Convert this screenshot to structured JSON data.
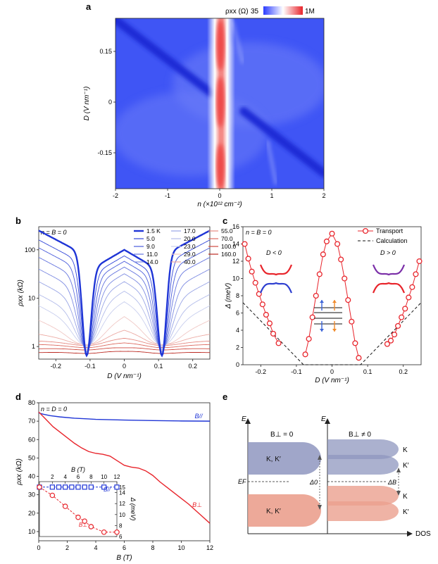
{
  "panel_labels": {
    "a": "a",
    "b": "b",
    "c": "c",
    "d": "d",
    "e": "e"
  },
  "panel_a": {
    "colorbar_label": "ρxx (Ω)",
    "colorbar_min": "35",
    "colorbar_max": "1M",
    "xlabel": "n (×10¹² cm⁻²)",
    "ylabel": "D (V nm⁻¹)",
    "x_ticks": [
      "-2",
      "-1",
      "0",
      "1",
      "2"
    ],
    "y_ticks": [
      "0.15",
      "0",
      "-0.15"
    ],
    "colors": {
      "low": "#2b3cff",
      "mid": "#ffffff",
      "high": "#e8242b"
    }
  },
  "chart_data": [
    {
      "panel": "b",
      "type": "line",
      "annotation": "n = B = 0",
      "xlabel": "D (V nm⁻¹)",
      "ylabel": "ρxx (kΩ)",
      "xlim": [
        -0.25,
        0.25
      ],
      "ylim_log": [
        0.55,
        300
      ],
      "y_scale": "log",
      "x_ticks": [
        "-0.2",
        "-0.1",
        "0",
        "0.1",
        "0.2"
      ],
      "y_ticks": [
        "1",
        "10",
        "100"
      ],
      "legend_placement": "top-right",
      "legend": [
        "1.5 K",
        "5.0",
        "9.0",
        "11.0",
        "14.0",
        "17.0",
        "20.0",
        "23.0",
        "29.0",
        "40.0",
        "55.0",
        "70.0",
        "100.0",
        "160.0"
      ],
      "series_colors": [
        "#1f35d6",
        "#3347d8",
        "#4a5cdb",
        "#6474de",
        "#7e8ce2",
        "#99a5e6",
        "#b3bcea",
        "#c9cfee",
        "#f0c8c5",
        "#ecaaa3",
        "#e58a82",
        "#dc6a60",
        "#cf4a40",
        "#bb2a22"
      ],
      "peak_values": [
        100,
        75,
        58,
        44,
        32,
        22,
        14,
        8.5,
        4.2,
        2.2,
        1.5,
        1.2,
        0.95,
        0.8
      ],
      "edge_values": [
        250,
        160,
        110,
        70,
        40,
        22,
        12,
        7,
        3.5,
        1.8,
        1.3,
        1.1,
        0.9,
        0.75
      ],
      "min_values": [
        0.65,
        0.68,
        0.72,
        0.78,
        0.85,
        0.92,
        1.0,
        1.05,
        1.1,
        1.1,
        1.05,
        0.95,
        0.85,
        0.72
      ]
    },
    {
      "panel": "c",
      "type": "scatter",
      "annotation": "n = B = 0",
      "xlabel": "D (V nm⁻¹)",
      "ylabel": "Δ (meV)",
      "xlim": [
        -0.25,
        0.25
      ],
      "ylim": [
        0,
        16
      ],
      "x_ticks": [
        "-0.2",
        "-0.1",
        "0",
        "0.1",
        "0.2"
      ],
      "y_ticks": [
        "0",
        "2",
        "4",
        "6",
        "8",
        "10",
        "12",
        "14",
        "16"
      ],
      "legend_placement": "top-right",
      "series": [
        {
          "name": "Transport",
          "color": "#e8242b",
          "x": [
            -0.245,
            -0.235,
            -0.225,
            -0.215,
            -0.205,
            -0.195,
            -0.185,
            -0.175,
            -0.165,
            -0.15,
            -0.075,
            -0.065,
            -0.055,
            -0.045,
            -0.035,
            -0.025,
            -0.015,
            0.0,
            0.015,
            0.025,
            0.035,
            0.045,
            0.055,
            0.065,
            0.075,
            0.155,
            0.165,
            0.175,
            0.185,
            0.195,
            0.205,
            0.215,
            0.225,
            0.235,
            0.245
          ],
          "y": [
            14.0,
            12.3,
            10.8,
            9.5,
            8.2,
            7.0,
            5.8,
            4.8,
            3.6,
            2.5,
            1.2,
            3.0,
            5.5,
            8.0,
            10.5,
            12.8,
            14.3,
            15.2,
            14.0,
            12.2,
            10.0,
            7.5,
            5.0,
            2.5,
            0.8,
            2.4,
            2.8,
            3.5,
            4.5,
            5.5,
            6.5,
            7.8,
            9.0,
            10.5,
            12.0
          ]
        },
        {
          "name": "Calculation",
          "color": "#111111",
          "dashed": true,
          "x": [
            -0.25,
            -0.08,
            0.08,
            0.25
          ],
          "y": [
            7.2,
            0,
            0,
            7.2
          ]
        }
      ],
      "insets": {
        "left_label": "D < 0",
        "right_label": "D > 0"
      }
    },
    {
      "panel": "d",
      "type": "line",
      "annotation": "n = D = 0",
      "xlabel": "B (T)",
      "ylabel": "ρxx (kΩ)",
      "xlim": [
        0,
        12
      ],
      "ylim": [
        5,
        80
      ],
      "x_ticks": [
        "0",
        "2",
        "4",
        "6",
        "8",
        "10",
        "12"
      ],
      "y_ticks": [
        "10",
        "20",
        "30",
        "40",
        "50",
        "60",
        "70",
        "80"
      ],
      "series": [
        {
          "name": "B//",
          "color": "#1f35d6",
          "x": [
            0,
            0.3,
            0.8,
            1.5,
            2.5,
            4,
            6,
            8,
            10,
            12
          ],
          "y": [
            74.5,
            73.8,
            73.0,
            72.3,
            71.6,
            71.0,
            70.6,
            70.3,
            70.1,
            70.0
          ]
        },
        {
          "name": "B⊥",
          "color": "#e8242b",
          "x": [
            0,
            0.5,
            1,
            1.5,
            2,
            2.5,
            3,
            3.5,
            4,
            4.5,
            5,
            5.5,
            6,
            6.5,
            7,
            7.5,
            8,
            8.5,
            9,
            9.5,
            10,
            10.5,
            11,
            11.5,
            12
          ],
          "y": [
            75,
            71,
            67,
            64,
            61,
            58,
            55.5,
            53.5,
            52.5,
            52,
            51,
            48.5,
            46,
            45,
            44.5,
            43,
            40.5,
            37,
            34,
            31,
            28,
            25,
            21.5,
            18,
            14.5
          ]
        }
      ],
      "inset": {
        "xlabel": "B (T)",
        "ylabel": "Δ (meV)",
        "xlim": [
          0,
          12
        ],
        "ylim": [
          6,
          16
        ],
        "x_ticks": [
          "2",
          "4",
          "6",
          "8",
          "10",
          "12"
        ],
        "y_ticks": [
          "6",
          "8",
          "10",
          "12",
          "14"
        ],
        "top_label": "15",
        "series": [
          {
            "name": "B//",
            "color": "#1f35d6",
            "marker": "square",
            "x": [
              0,
              2,
              3,
              4,
              5,
              6,
              7,
              8,
              10,
              12
            ],
            "y": [
              15.0,
              15.0,
              15.0,
              15.0,
              15.0,
              15.0,
              15.0,
              15.0,
              15.0,
              15.0
            ]
          },
          {
            "name": "B⊥",
            "color": "#e8242b",
            "marker": "circle",
            "x": [
              0,
              2,
              4,
              6,
              7,
              8,
              10,
              12
            ],
            "y": [
              15.0,
              13.5,
              11.5,
              9.5,
              8.8,
              7.8,
              6.8,
              6.8
            ]
          }
        ]
      }
    }
  ],
  "panel_e": {
    "axis_e": "E",
    "axis_dos": "DOS",
    "left_title": "B⊥ = 0",
    "right_title": "B⊥ ≠ 0",
    "ef_label": "EF",
    "delta0": "Δ0",
    "deltab": "ΔB",
    "left_upper_band": "K, K′",
    "left_lower_band": "K, K′",
    "right_labels": [
      "K",
      "K′",
      "K",
      "K′"
    ],
    "colors": {
      "upper": "#8f97bf",
      "lower": "#eba08e"
    }
  }
}
